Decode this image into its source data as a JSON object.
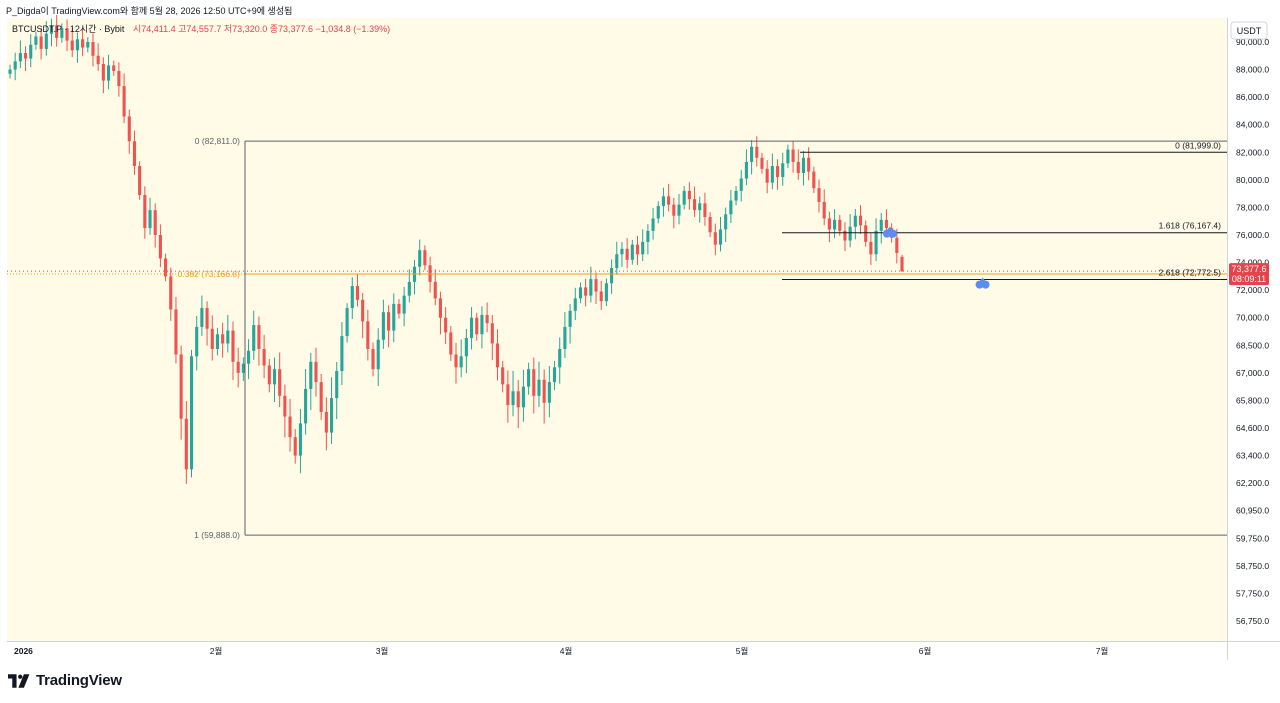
{
  "header": {
    "top_line": "P_Digda이 TradingView.com와 함께 5월 28, 2026 12:50 UTC+9에 생성됨",
    "symbol": "BTCUSDT.P · 12시간 · Bybit",
    "ohlc": "시74,411.4  고74,557.7  저73,320.0  종73,377.6  −1,034.8 (−1.39%)"
  },
  "brand": {
    "name": "TradingView"
  },
  "colors": {
    "background": "#fffbe6",
    "up": "#26a69a",
    "down": "#ef5350",
    "fib_orange": "#f59c1a",
    "price_tag": "#e5434b",
    "marker": "#5b8def"
  },
  "chart_data": {
    "type": "candlestick",
    "title": "",
    "currency": "USDT",
    "x_labels": [
      "2026",
      "2월",
      "3월",
      "4월",
      "5월",
      "6월",
      "7월"
    ],
    "y_ticks": [
      "90,000.0",
      "88,000.0",
      "86,000.0",
      "84,000.0",
      "82,000.0",
      "80,000.0",
      "78,000.0",
      "76,000.0",
      "74,000.0",
      "72,000.0",
      "70,000.0",
      "68,500.0",
      "67,000.0",
      "65,800.0",
      "64,600.0",
      "63,400.0",
      "62,200.0",
      "60,950.0",
      "59,750.0",
      "58,750.0",
      "57,750.0",
      "56,750.0"
    ],
    "y_tick_values": [
      90000,
      88000,
      86000,
      84000,
      82000,
      80000,
      78000,
      76000,
      74000,
      72000,
      70000,
      68500,
      67000,
      65800,
      64600,
      63400,
      62200,
      60950,
      59750,
      58750,
      57750,
      56750
    ],
    "last_price": {
      "label": "73,377.6",
      "countdown": "08:09:11",
      "value": 73377.6
    },
    "fib_levels": [
      {
        "label": "0 (82,811.0)",
        "value": 82811.0,
        "color": "#131722"
      },
      {
        "label": "0.382 (73,166.8)",
        "value": 73166.8,
        "color": "#f59c1a"
      },
      {
        "label": "1 (59,888.0)",
        "value": 59888.0,
        "color": "#131722"
      }
    ],
    "fib_ext_levels": [
      {
        "label": "0 (81,999.0)",
        "value": 81999.0
      },
      {
        "label": "1.618 (76,167.4)",
        "value": 76167.4
      },
      {
        "label": "2.618 (72,772.5)",
        "value": 72772.5
      }
    ],
    "markers": [
      {
        "value": 76100,
        "slot": 0.695
      },
      {
        "value": 72400,
        "slot": 0.717
      }
    ],
    "closes": [
      88000,
      88600,
      89200,
      88800,
      89800,
      90400,
      89500,
      90600,
      91200,
      90300,
      91000,
      90100,
      89400,
      90200,
      89600,
      90000,
      89000,
      88400,
      87200,
      88300,
      87900,
      86800,
      84600,
      82800,
      81000,
      78900,
      76500,
      77800,
      76000,
      74300,
      73000,
      70600,
      68000,
      65000,
      62800,
      67900,
      69500,
      70700,
      69400,
      68300,
      69100,
      68600,
      69300,
      67600,
      67000,
      67500,
      68200,
      69600,
      68300,
      67400,
      66500,
      67200,
      66000,
      65100,
      64200,
      63400,
      64800,
      66300,
      67600,
      66600,
      65300,
      64400,
      65900,
      67100,
      69000,
      70700,
      72300,
      71300,
      69800,
      68300,
      67200,
      68800,
      70400,
      69300,
      71000,
      70300,
      71600,
      72600,
      73700,
      74900,
      73800,
      72600,
      71400,
      70000,
      69200,
      68000,
      67300,
      67900,
      68900,
      70000,
      69100,
      70200,
      69700,
      68600,
      67300,
      66500,
      65600,
      66200,
      65500,
      66400,
      67200,
      66000,
      66700,
      65700,
      66600,
      67300,
      68300,
      69500,
      70500,
      71400,
      72200,
      71600,
      72800,
      71900,
      71200,
      72500,
      73600,
      74600,
      75000,
      74200,
      75300,
      74600,
      75500,
      76300,
      77200,
      78100,
      78800,
      78200,
      77400,
      78200,
      79200,
      78600,
      77800,
      78300,
      77300,
      76200,
      75300,
      76400,
      77500,
      78500,
      79200,
      80100,
      81300,
      82400,
      81600,
      80800,
      79800,
      81000,
      80200,
      81200,
      82200,
      81300,
      80500,
      81600,
      80600,
      79400,
      78400,
      77200,
      76400,
      77100,
      76300,
      75600,
      76600,
      77400,
      76700,
      75500,
      74600,
      76300,
      77100,
      76500,
      75800,
      74700,
      73377.6
    ],
    "ohlc_last": {
      "open": 74411.4,
      "high": 74557.7,
      "low": 73320.0,
      "close": 73377.6,
      "change": -1034.8,
      "change_pct": -1.39
    }
  }
}
